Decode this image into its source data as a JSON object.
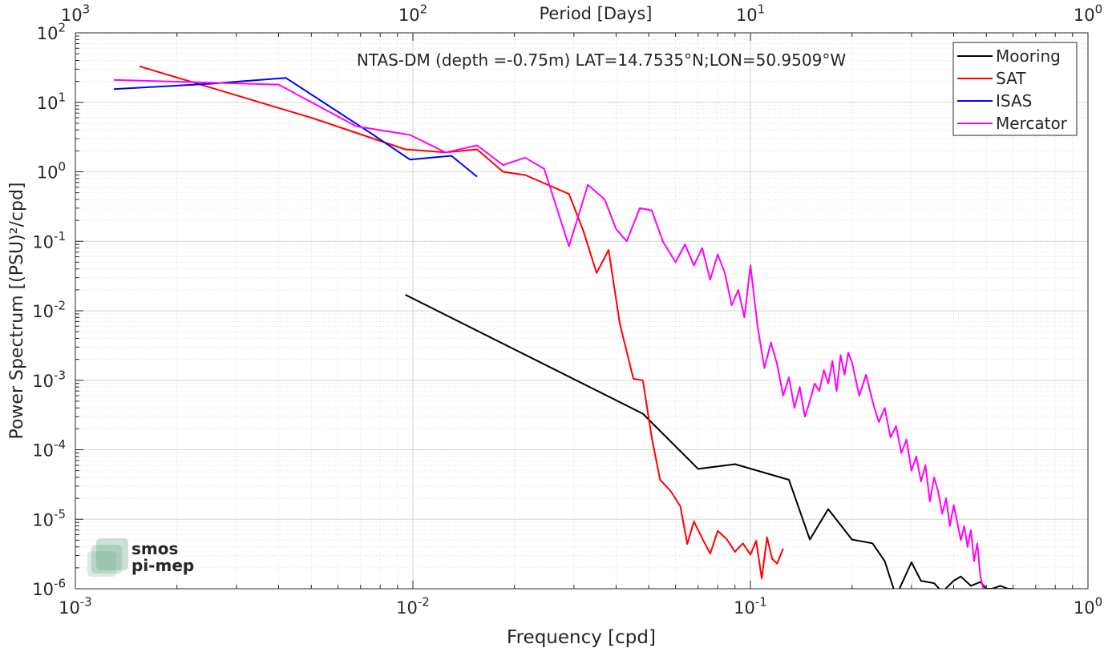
{
  "chart_data": {
    "type": "line",
    "title": "NTAS-DM (depth =-0.75m) LAT=14.7535°N;LON=50.9509°W",
    "xlabel": "Frequency [cpd]",
    "ylabel": "Power Spectrum [(PSU)²/cpd]",
    "top_xlabel": "Period [Days]",
    "xscale": "log",
    "yscale": "log",
    "xlim": [
      0.001,
      1
    ],
    "ylim": [
      1e-06,
      100
    ],
    "grid": true,
    "legend_position": "top-right",
    "x_ticks": [
      {
        "base": "10",
        "exp": "-3"
      },
      {
        "base": "10",
        "exp": "-2"
      },
      {
        "base": "10",
        "exp": "-1"
      },
      {
        "base": "10",
        "exp": "0"
      }
    ],
    "y_ticks": [
      {
        "base": "10",
        "exp": "-6"
      },
      {
        "base": "10",
        "exp": "-5"
      },
      {
        "base": "10",
        "exp": "-4"
      },
      {
        "base": "10",
        "exp": "-3"
      },
      {
        "base": "10",
        "exp": "-2"
      },
      {
        "base": "10",
        "exp": "-1"
      },
      {
        "base": "10",
        "exp": "0"
      },
      {
        "base": "10",
        "exp": "1"
      },
      {
        "base": "10",
        "exp": "2"
      }
    ],
    "top_ticks": [
      {
        "base": "10",
        "exp": "3"
      },
      {
        "base": "10",
        "exp": "2"
      },
      {
        "base": "10",
        "exp": "1"
      },
      {
        "base": "10",
        "exp": "0"
      }
    ],
    "series": [
      {
        "name": "Mooring",
        "color": "#000000",
        "x": [
          0.0095,
          0.048,
          0.07,
          0.09,
          0.13,
          0.15,
          0.17,
          0.2,
          0.23,
          0.25,
          0.27,
          0.3,
          0.32,
          0.35,
          0.37,
          0.4,
          0.42,
          0.45,
          0.48,
          0.5,
          0.52,
          0.55,
          0.58,
          0.6,
          0.62,
          0.65,
          0.68,
          0.7,
          0.72,
          0.75,
          0.78,
          0.8,
          0.83,
          0.85,
          0.88,
          0.9,
          0.93,
          0.95,
          0.98,
          1.0
        ],
        "y": [
          0.017,
          0.00033,
          5.3e-05,
          6.2e-05,
          3.7e-05,
          5.1e-06,
          1.4e-05,
          5.1e-06,
          4.5e-06,
          2.5e-06,
          7.8e-07,
          2.4e-06,
          1.3e-06,
          1.2e-06,
          9e-07,
          1.3e-06,
          1.5e-06,
          1.1e-06,
          1.25e-06,
          1e-06,
          1e-06,
          1.1e-06,
          1e-06,
          1e-06,
          9e-07,
          7.8e-07,
          7.5e-07,
          6.8e-07,
          7e-07,
          6e-07,
          5.5e-07,
          7e-07,
          5e-07,
          8e-07,
          6e-07,
          9e-07,
          5.8e-07,
          8e-07,
          5e-07,
          6e-07
        ]
      },
      {
        "name": "SAT",
        "color": "#ff0000",
        "x": [
          0.00155,
          0.005,
          0.0095,
          0.0125,
          0.0155,
          0.0185,
          0.0215,
          0.029,
          0.032,
          0.035,
          0.038,
          0.041,
          0.045,
          0.048,
          0.051,
          0.054,
          0.058,
          0.062,
          0.065,
          0.068,
          0.072,
          0.076,
          0.08,
          0.085,
          0.09,
          0.095,
          0.1,
          0.104,
          0.108,
          0.112,
          0.116,
          0.12,
          0.125
        ],
        "y": [
          33,
          6,
          2.1,
          1.9,
          2.1,
          1.0,
          0.9,
          0.48,
          0.14,
          0.035,
          0.075,
          0.0066,
          0.00105,
          0.001,
          0.00015,
          3.71e-05,
          2.55e-05,
          1.54e-05,
          4.4e-06,
          9.3e-06,
          5.3e-06,
          3.2e-06,
          6.8e-06,
          5.2e-06,
          3.4e-06,
          4.5e-06,
          3.1e-06,
          4.9e-06,
          1.4e-06,
          5.5e-06,
          2.7e-06,
          2.3e-06,
          3.8e-06
        ]
      },
      {
        "name": "ISAS",
        "color": "#0000ff",
        "x": [
          0.0013,
          0.0025,
          0.0042,
          0.0075,
          0.0098,
          0.013,
          0.0155
        ],
        "y": [
          15.5,
          18.5,
          22.5,
          3.6,
          1.5,
          1.7,
          0.85
        ]
      },
      {
        "name": "Mercator",
        "color": "#ff00ff",
        "x": [
          0.0013,
          0.004,
          0.0068,
          0.0098,
          0.0125,
          0.0155,
          0.0185,
          0.0215,
          0.0245,
          0.029,
          0.033,
          0.037,
          0.04,
          0.043,
          0.047,
          0.051,
          0.055,
          0.06,
          0.064,
          0.068,
          0.072,
          0.076,
          0.08,
          0.084,
          0.088,
          0.092,
          0.096,
          0.1,
          0.105,
          0.11,
          0.115,
          0.12,
          0.125,
          0.13,
          0.135,
          0.14,
          0.145,
          0.15,
          0.155,
          0.16,
          0.165,
          0.17,
          0.175,
          0.18,
          0.185,
          0.19,
          0.195,
          0.2,
          0.21,
          0.22,
          0.23,
          0.24,
          0.25,
          0.26,
          0.27,
          0.28,
          0.29,
          0.3,
          0.31,
          0.32,
          0.33,
          0.34,
          0.35,
          0.36,
          0.37,
          0.38,
          0.39,
          0.4,
          0.41,
          0.42,
          0.43,
          0.44,
          0.45,
          0.46,
          0.47,
          0.48,
          0.49
        ],
        "y": [
          21,
          18,
          4.5,
          3.4,
          1.9,
          2.4,
          1.25,
          1.6,
          1.1,
          0.085,
          0.65,
          0.4,
          0.15,
          0.1,
          0.3,
          0.28,
          0.1,
          0.05,
          0.09,
          0.045,
          0.08,
          0.028,
          0.065,
          0.035,
          0.012,
          0.02,
          0.008,
          0.045,
          0.006,
          0.0015,
          0.0035,
          0.0017,
          0.0006,
          0.0011,
          0.0004,
          0.0008,
          0.0003,
          0.0005,
          0.0009,
          0.0007,
          0.0014,
          0.0009,
          0.0019,
          0.0007,
          0.0023,
          0.0012,
          0.0025,
          0.0018,
          0.0006,
          0.0012,
          0.0005,
          0.00025,
          0.0004,
          0.00015,
          0.00022,
          9e-05,
          0.00014,
          5e-05,
          8e-05,
          3.5e-05,
          6e-05,
          1.8e-05,
          4e-05,
          2.5e-05,
          1.2e-05,
          2e-05,
          8e-06,
          1.6e-05,
          9e-06,
          5e-06,
          8e-06,
          4e-06,
          7e-06,
          2.5e-06,
          4.5e-06,
          1.5e-06,
          1e-06
        ]
      }
    ]
  },
  "logo": {
    "line1": "smos",
    "line2": "pi-mep",
    "color": "#6aa889"
  }
}
